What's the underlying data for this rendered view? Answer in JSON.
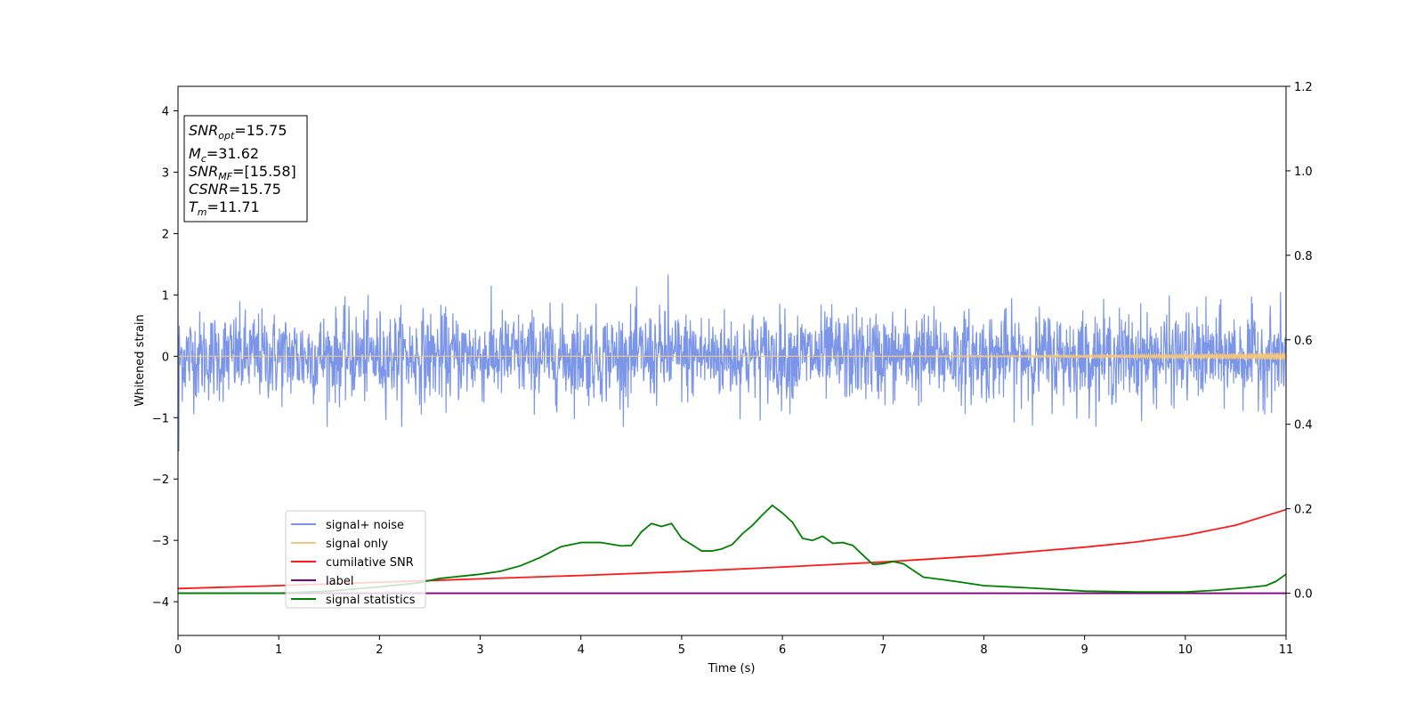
{
  "chart_data": {
    "type": "line",
    "xlabel": "Time (s)",
    "ylabel": "Whitened strain",
    "xlim": [
      0,
      11
    ],
    "ylim_left": [
      -4.55,
      4.4
    ],
    "ylim_right": [
      -0.1,
      1.2
    ],
    "x_ticks": [
      0,
      1,
      2,
      3,
      4,
      5,
      6,
      7,
      8,
      9,
      10,
      11
    ],
    "y_ticks_left": [
      -4,
      -3,
      -2,
      -1,
      0,
      1,
      2,
      3,
      4
    ],
    "y_ticks_right": [
      0.0,
      0.2,
      0.4,
      0.6,
      0.8,
      1.0,
      1.2
    ],
    "grid": false,
    "legend_position": "lower-left",
    "annotation_box": {
      "position": "top-left",
      "lines": [
        {
          "base": "SNR",
          "sub": "opt",
          "value": "=15.75"
        },
        {
          "base": "M",
          "sub": "c",
          "value": "=31.62"
        },
        {
          "base": "SNR",
          "sub": "MF",
          "value": "=[15.58]"
        },
        {
          "base": "CSNR",
          "sub": "",
          "value": "=15.75"
        },
        {
          "base": "T",
          "sub": "m",
          "value": "=11.71"
        }
      ]
    },
    "series": [
      {
        "name": "signal+ noise",
        "color": "#7b95e8",
        "axis": "left",
        "kind": "noise",
        "amplitude_envelope": 1.15,
        "extremes": {
          "max": 1.33,
          "min": -1.55
        }
      },
      {
        "name": "signal only",
        "color": "#f5c77a",
        "axis": "left",
        "kind": "chirp",
        "x_start": 0,
        "x_end": 11,
        "amplitude_start": 0.0,
        "amplitude_end": 0.06
      },
      {
        "name": "cumilative SNR",
        "color": "#ff1a1a",
        "axis": "right",
        "x": [
          0,
          1,
          2,
          3,
          4,
          5,
          6,
          7,
          8,
          9,
          9.5,
          10,
          10.5,
          11
        ],
        "y": [
          0.011,
          0.018,
          0.026,
          0.034,
          0.042,
          0.051,
          0.062,
          0.074,
          0.089,
          0.109,
          0.121,
          0.137,
          0.161,
          0.198
        ]
      },
      {
        "name": "label",
        "color": "#800080",
        "axis": "right",
        "x": [
          0,
          11
        ],
        "y": [
          0.0,
          0.0
        ]
      },
      {
        "name": "signal statistics",
        "color": "#008000",
        "axis": "right",
        "x": [
          0,
          1.0,
          1.5,
          2.0,
          2.2,
          2.4,
          2.6,
          2.8,
          3.0,
          3.2,
          3.4,
          3.6,
          3.8,
          4.0,
          4.2,
          4.4,
          4.5,
          4.6,
          4.7,
          4.8,
          4.9,
          5.0,
          5.1,
          5.2,
          5.3,
          5.4,
          5.5,
          5.6,
          5.7,
          5.8,
          5.9,
          6.0,
          6.1,
          6.2,
          6.3,
          6.4,
          6.5,
          6.6,
          6.7,
          6.8,
          6.9,
          7.0,
          7.1,
          7.2,
          7.4,
          7.6,
          7.8,
          8.0,
          8.5,
          9.0,
          9.5,
          10.0,
          10.3,
          10.6,
          10.8,
          10.9,
          11.0
        ],
        "y": [
          0.0,
          0.0,
          0.005,
          0.015,
          0.02,
          0.025,
          0.035,
          0.04,
          0.045,
          0.052,
          0.065,
          0.085,
          0.11,
          0.12,
          0.12,
          0.112,
          0.113,
          0.145,
          0.165,
          0.158,
          0.165,
          0.13,
          0.115,
          0.1,
          0.1,
          0.105,
          0.115,
          0.14,
          0.16,
          0.185,
          0.208,
          0.19,
          0.168,
          0.13,
          0.125,
          0.135,
          0.118,
          0.12,
          0.113,
          0.09,
          0.068,
          0.07,
          0.075,
          0.07,
          0.038,
          0.032,
          0.025,
          0.018,
          0.012,
          0.005,
          0.003,
          0.003,
          0.007,
          0.013,
          0.018,
          0.028,
          0.045
        ]
      }
    ]
  }
}
